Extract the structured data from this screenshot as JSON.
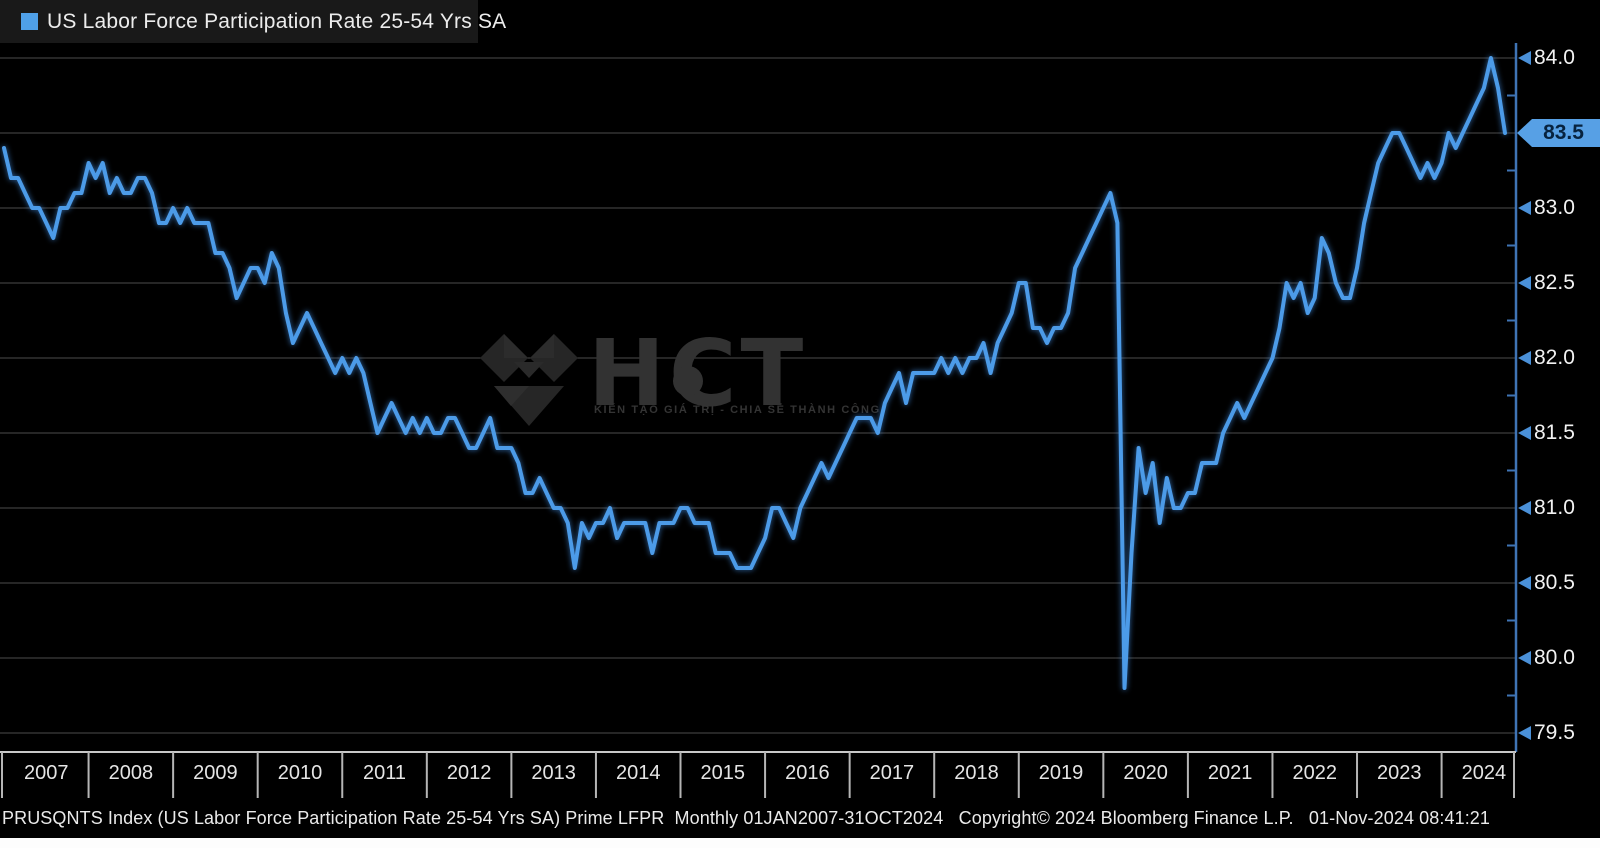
{
  "legend": {
    "label": "US Labor Force Participation Rate 25-54 Yrs SA",
    "swatch_color": "#4fa0e8"
  },
  "colors": {
    "background": "#000000",
    "legend_strip": "#191919",
    "line": "#4c9be8",
    "y_axis_line": "#3f74b5",
    "gridline": "#3c3c3c",
    "tick_arrow": "#4a90d8",
    "badge_background": "#57a0e5",
    "badge_text": "#07233f",
    "x_axis_line": "#c8c8c8",
    "label_text": "#f2f2f2"
  },
  "y_axis": {
    "side": "right",
    "ticks": [
      "84.0",
      "83.5",
      "83.0",
      "82.5",
      "82.0",
      "81.5",
      "81.0",
      "80.5",
      "80.0",
      "79.5"
    ],
    "minor_tick_step": 0.25,
    "last_value_label": "83.5"
  },
  "x_axis": {
    "years": [
      "2007",
      "2008",
      "2009",
      "2010",
      "2011",
      "2012",
      "2013",
      "2014",
      "2015",
      "2016",
      "2017",
      "2018",
      "2019",
      "2020",
      "2021",
      "2022",
      "2023",
      "2024"
    ]
  },
  "watermark": {
    "brand": "HCT",
    "tagline": "KIẾN TẠO GIÁ TRỊ - CHIA SẺ THÀNH CÔNG"
  },
  "footer": {
    "text": "PRUSQNTS Index (US Labor Force Participation Rate 25-54 Yrs SA) Prime LFPR  Monthly 01JAN2007-31OCT2024   Copyright© 2024 Bloomberg Finance L.P.   01-Nov-2024 08:41:21"
  },
  "chart_data": {
    "type": "line",
    "title": "US Labor Force Participation Rate 25-54 Yrs SA",
    "ticker": "PRUSQNTS Index",
    "frequency": "Monthly",
    "period": "01JAN2007-31OCT2024",
    "x_start": "2007-01",
    "x_end": "2024-10",
    "ylim": [
      79.5,
      84.25
    ],
    "grid": "horizontal",
    "legend_position": "top-left",
    "last_value": 83.5,
    "peak_value": 84.0,
    "trough_value": 79.8,
    "series": [
      {
        "name": "US Labor Force Participation Rate 25-54 Yrs SA",
        "values": [
          83.4,
          83.2,
          83.2,
          83.1,
          83.0,
          83.0,
          82.9,
          82.8,
          83.0,
          83.0,
          83.1,
          83.1,
          83.3,
          83.2,
          83.3,
          83.1,
          83.2,
          83.1,
          83.1,
          83.2,
          83.2,
          83.1,
          82.9,
          82.9,
          83.0,
          82.9,
          83.0,
          82.9,
          82.9,
          82.9,
          82.7,
          82.7,
          82.6,
          82.4,
          82.5,
          82.6,
          82.6,
          82.5,
          82.7,
          82.6,
          82.3,
          82.1,
          82.2,
          82.3,
          82.2,
          82.1,
          82.0,
          81.9,
          82.0,
          81.9,
          82.0,
          81.9,
          81.7,
          81.5,
          81.6,
          81.7,
          81.6,
          81.5,
          81.6,
          81.5,
          81.6,
          81.5,
          81.5,
          81.6,
          81.6,
          81.5,
          81.4,
          81.4,
          81.5,
          81.6,
          81.4,
          81.4,
          81.4,
          81.3,
          81.1,
          81.1,
          81.2,
          81.1,
          81.0,
          81.0,
          80.9,
          80.6,
          80.9,
          80.8,
          80.9,
          80.9,
          81.0,
          80.8,
          80.9,
          80.9,
          80.9,
          80.9,
          80.7,
          80.9,
          80.9,
          80.9,
          81.0,
          81.0,
          80.9,
          80.9,
          80.9,
          80.7,
          80.7,
          80.7,
          80.6,
          80.6,
          80.6,
          80.7,
          80.8,
          81.0,
          81.0,
          80.9,
          80.8,
          81.0,
          81.1,
          81.2,
          81.3,
          81.2,
          81.3,
          81.4,
          81.5,
          81.6,
          81.6,
          81.6,
          81.5,
          81.7,
          81.8,
          81.9,
          81.7,
          81.9,
          81.9,
          81.9,
          81.9,
          82.0,
          81.9,
          82.0,
          81.9,
          82.0,
          82.0,
          82.1,
          81.9,
          82.1,
          82.2,
          82.3,
          82.5,
          82.5,
          82.2,
          82.2,
          82.1,
          82.2,
          82.2,
          82.3,
          82.6,
          82.7,
          82.8,
          82.9,
          83.0,
          83.1,
          82.9,
          79.8,
          80.7,
          81.4,
          81.1,
          81.3,
          80.9,
          81.2,
          81.0,
          81.0,
          81.1,
          81.1,
          81.3,
          81.3,
          81.3,
          81.5,
          81.6,
          81.7,
          81.6,
          81.7,
          81.8,
          81.9,
          82.0,
          82.2,
          82.5,
          82.4,
          82.5,
          82.3,
          82.4,
          82.8,
          82.7,
          82.5,
          82.4,
          82.4,
          82.6,
          82.9,
          83.1,
          83.3,
          83.4,
          83.5,
          83.5,
          83.4,
          83.3,
          83.2,
          83.3,
          83.2,
          83.3,
          83.5,
          83.4,
          83.5,
          83.6,
          83.7,
          83.8,
          84.0,
          83.8,
          83.5
        ]
      }
    ]
  }
}
